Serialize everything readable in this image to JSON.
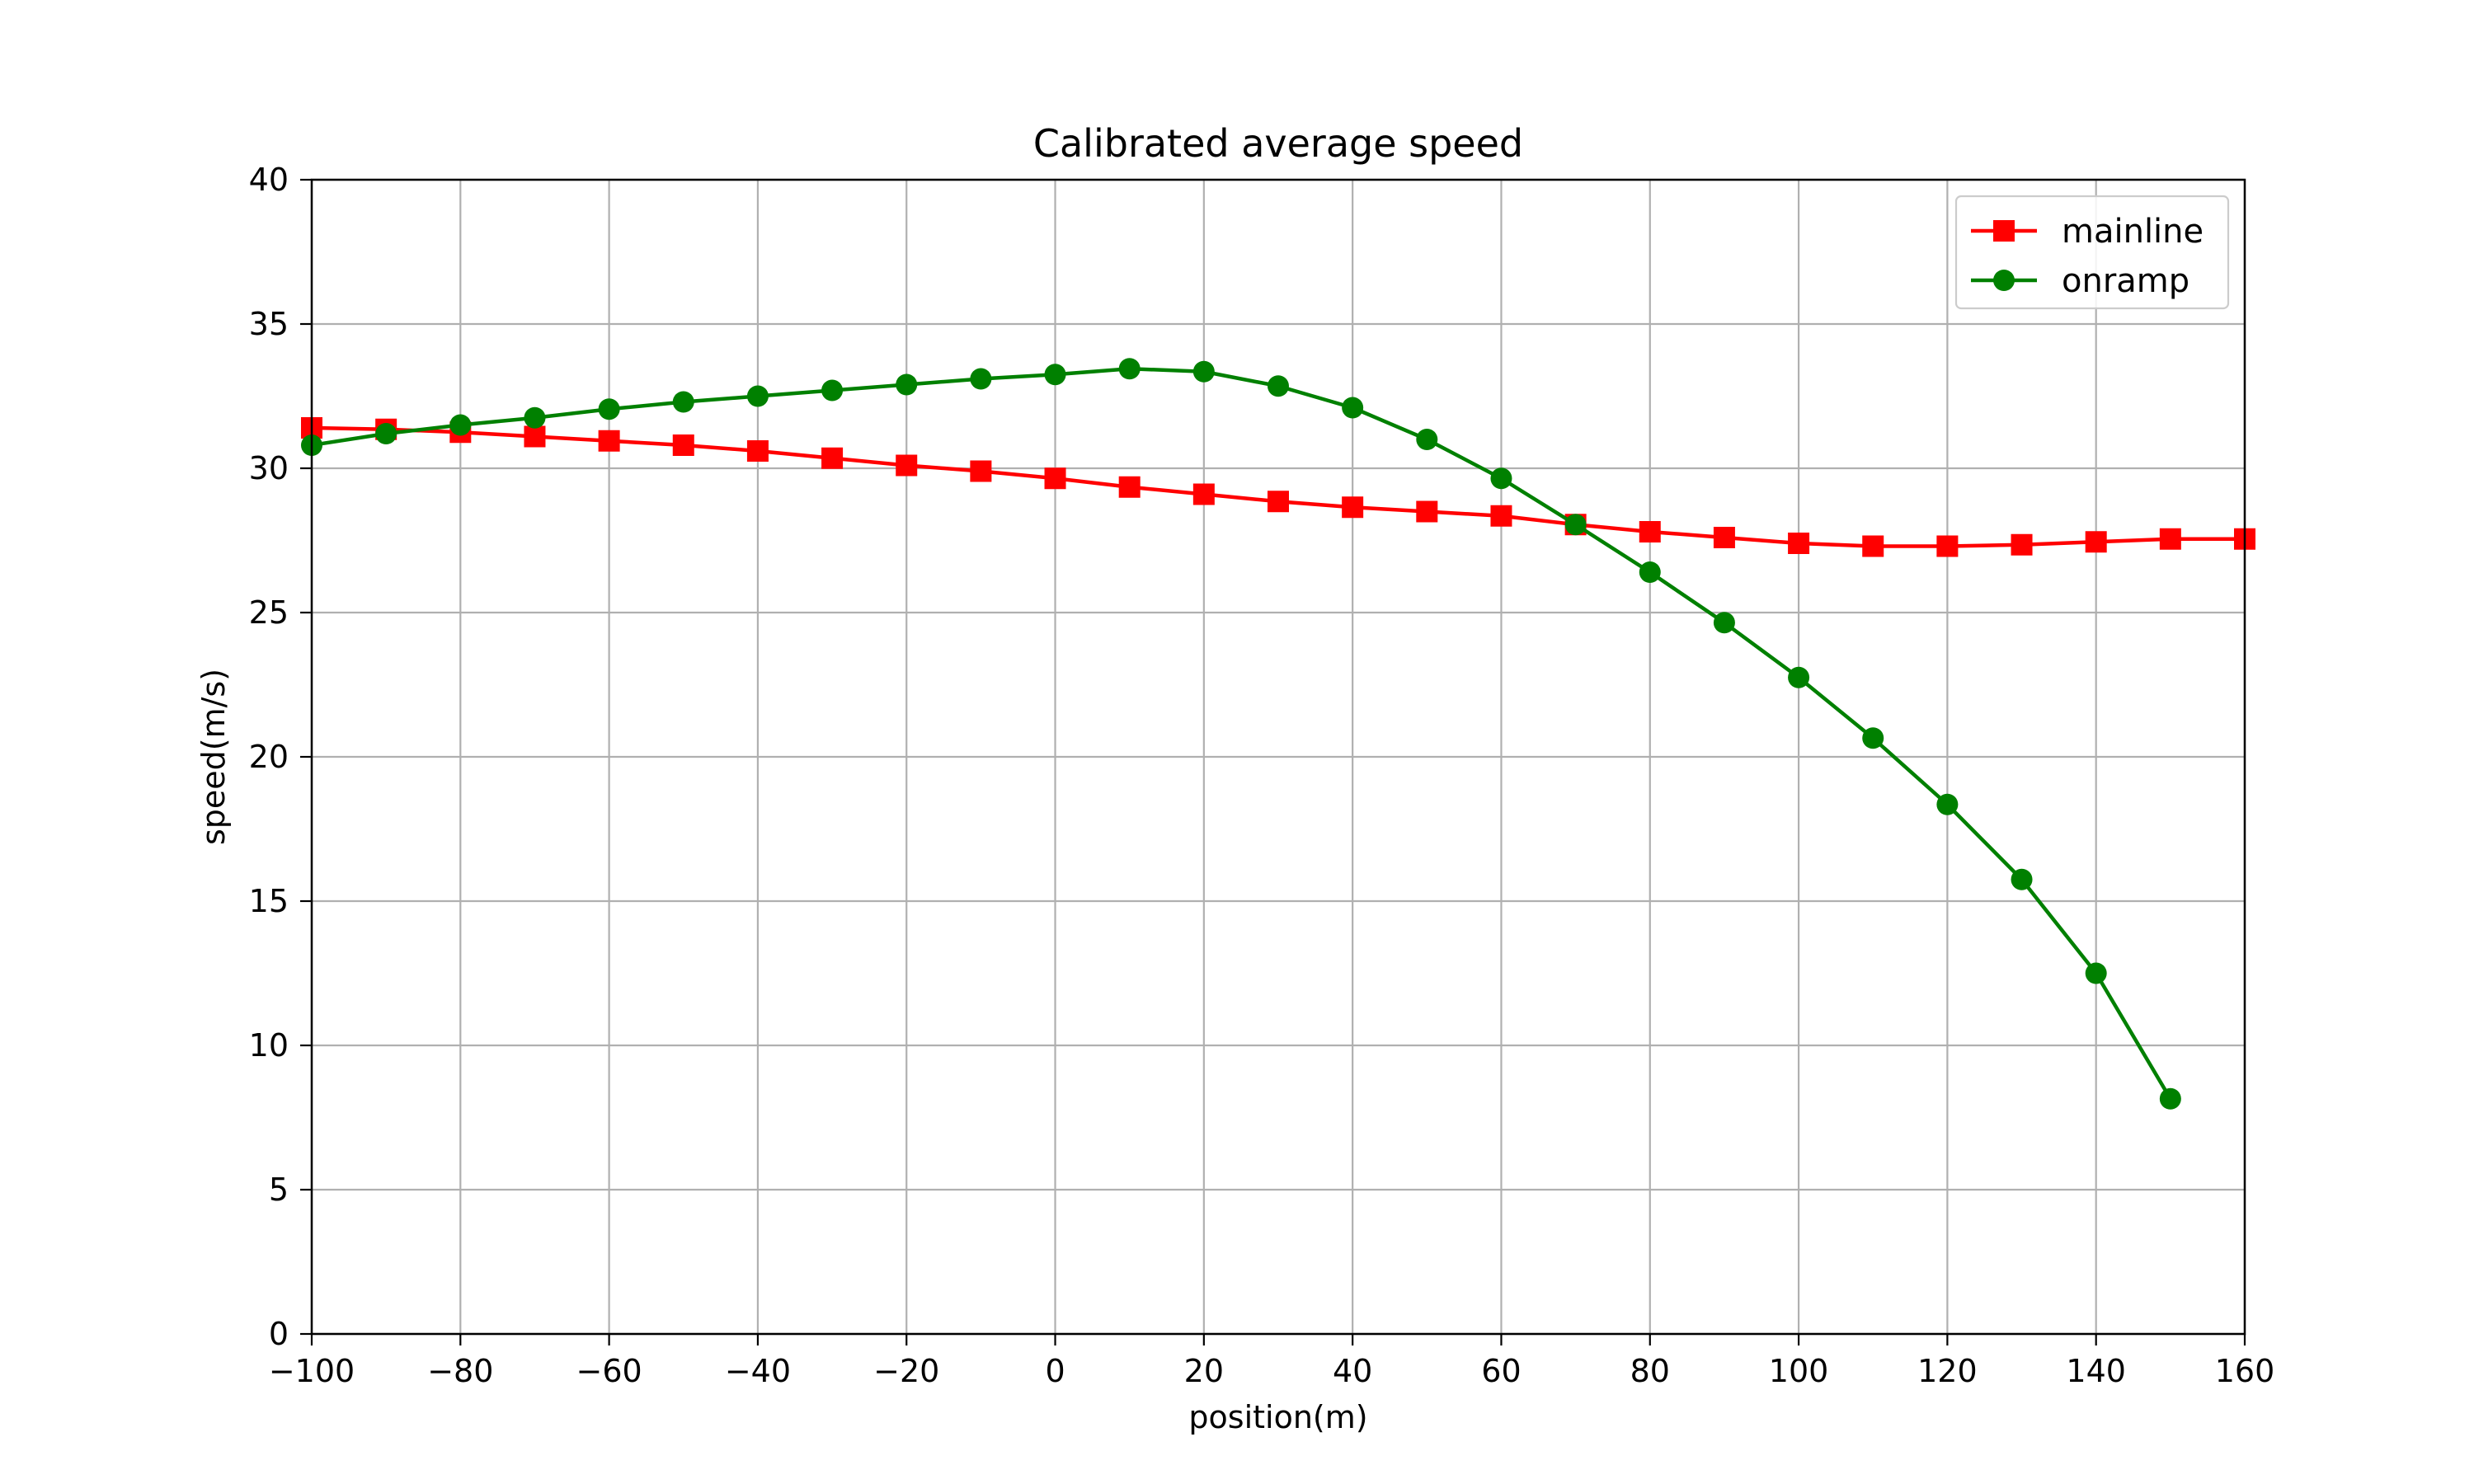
{
  "chart_data": {
    "type": "line",
    "title": "Calibrated average speed",
    "xlabel": "position(m)",
    "ylabel": "speed(m/s)",
    "xlim": [
      -100,
      160
    ],
    "ylim": [
      0,
      40
    ],
    "x_ticks": [
      -100,
      -80,
      -60,
      -40,
      -20,
      0,
      20,
      40,
      60,
      80,
      100,
      120,
      140,
      160
    ],
    "x_tick_labels": [
      "−100",
      "−80",
      "−60",
      "−40",
      "−20",
      "0",
      "20",
      "40",
      "60",
      "80",
      "100",
      "120",
      "140",
      "160"
    ],
    "y_ticks": [
      0,
      5,
      10,
      15,
      20,
      25,
      30,
      35,
      40
    ],
    "y_tick_labels": [
      "0",
      "5",
      "10",
      "15",
      "20",
      "25",
      "30",
      "35",
      "40"
    ],
    "grid": true,
    "legend_position": "top-right",
    "series": [
      {
        "name": "mainline",
        "color": "#ff0000",
        "marker": "square",
        "x": [
          -100,
          -90,
          -80,
          -70,
          -60,
          -50,
          -40,
          -30,
          -20,
          -10,
          0,
          10,
          20,
          30,
          40,
          50,
          60,
          70,
          80,
          90,
          100,
          110,
          120,
          130,
          140,
          150,
          160
        ],
        "y": [
          31.4,
          31.35,
          31.25,
          31.1,
          30.95,
          30.8,
          30.6,
          30.35,
          30.1,
          29.9,
          29.65,
          29.35,
          29.1,
          28.85,
          28.65,
          28.5,
          28.35,
          28.05,
          27.8,
          27.6,
          27.4,
          27.3,
          27.3,
          27.35,
          27.45,
          27.55,
          27.55
        ]
      },
      {
        "name": "onramp",
        "color": "#008000",
        "marker": "circle",
        "x": [
          -100,
          -90,
          -80,
          -70,
          -60,
          -50,
          -40,
          -30,
          -20,
          -10,
          0,
          10,
          20,
          30,
          40,
          50,
          60,
          70,
          80,
          90,
          100,
          110,
          120,
          130,
          140,
          150
        ],
        "y": [
          30.8,
          31.2,
          31.5,
          31.75,
          32.05,
          32.3,
          32.5,
          32.7,
          32.9,
          33.1,
          33.25,
          33.45,
          33.35,
          32.85,
          32.1,
          31.0,
          29.65,
          28.05,
          26.4,
          24.65,
          22.75,
          20.65,
          18.35,
          15.75,
          12.5,
          8.15
        ]
      }
    ]
  }
}
